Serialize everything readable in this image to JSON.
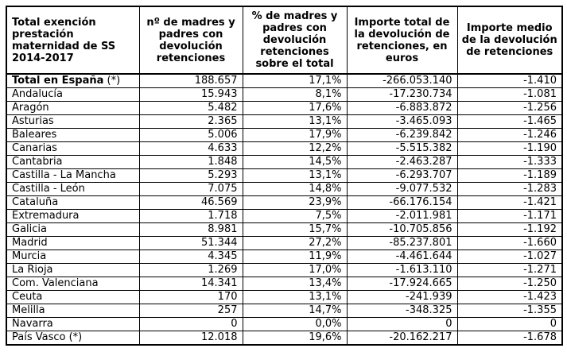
{
  "colors": {
    "text": "#000000",
    "border": "#000000",
    "background": "#ffffff"
  },
  "chart_data": {
    "type": "table",
    "title": "Total exención prestación maternidad de SS 2014-2017",
    "columns": [
      "Total exención prestación maternidad de SS 2014-2017",
      "nº de madres y padres con devolución retenciones",
      "% de madres y padres con devolución retenciones sobre el total",
      "Importe total de la devolución de retenciones, en euros",
      "Importe medio de la devolución de retenciones"
    ],
    "total_row_index": 0,
    "rows": [
      [
        "Total en España (*)",
        "188.657",
        "17,1%",
        "-266.053.140",
        "-1.410"
      ],
      [
        "Andalucía",
        "15.943",
        "8,1%",
        "-17.230.734",
        "-1.081"
      ],
      [
        "Aragón",
        "5.482",
        "17,6%",
        "-6.883.872",
        "-1.256"
      ],
      [
        "Asturias",
        "2.365",
        "13,1%",
        "-3.465.093",
        "-1.465"
      ],
      [
        "Baleares",
        "5.006",
        "17,9%",
        "-6.239.842",
        "-1.246"
      ],
      [
        "Canarias",
        "4.633",
        "12,2%",
        "-5.515.382",
        "-1.190"
      ],
      [
        "Cantabria",
        "1.848",
        "14,5%",
        "-2.463.287",
        "-1.333"
      ],
      [
        "Castilla - La Mancha",
        "5.293",
        "13,1%",
        "-6.293.707",
        "-1.189"
      ],
      [
        "Castilla - León",
        "7.075",
        "14,8%",
        "-9.077.532",
        "-1.283"
      ],
      [
        "Cataluña",
        "46.569",
        "23,9%",
        "-66.176.154",
        "-1.421"
      ],
      [
        "Extremadura",
        "1.718",
        "7,5%",
        "-2.011.981",
        "-1.171"
      ],
      [
        "Galicia",
        "8.981",
        "15,7%",
        "-10.705.856",
        "-1.192"
      ],
      [
        "Madrid",
        "51.344",
        "27,2%",
        "-85.237.801",
        "-1.660"
      ],
      [
        "Murcia",
        "4.345",
        "11,9%",
        "-4.461.644",
        "-1.027"
      ],
      [
        "La Rioja",
        "1.269",
        "17,0%",
        "-1.613.110",
        "-1.271"
      ],
      [
        "Com. Valenciana",
        "14.341",
        "13,4%",
        "-17.924.665",
        "-1.250"
      ],
      [
        "Ceuta",
        "170",
        "13,1%",
        "-241.939",
        "-1.423"
      ],
      [
        "Melilla",
        "257",
        "14,7%",
        "-348.325",
        "-1.355"
      ],
      [
        "Navarra",
        "0",
        "0,0%",
        "0",
        "0"
      ],
      [
        "País Vasco (*)",
        "12.018",
        "19,6%",
        "-20.162.217",
        "-1.678"
      ]
    ]
  }
}
